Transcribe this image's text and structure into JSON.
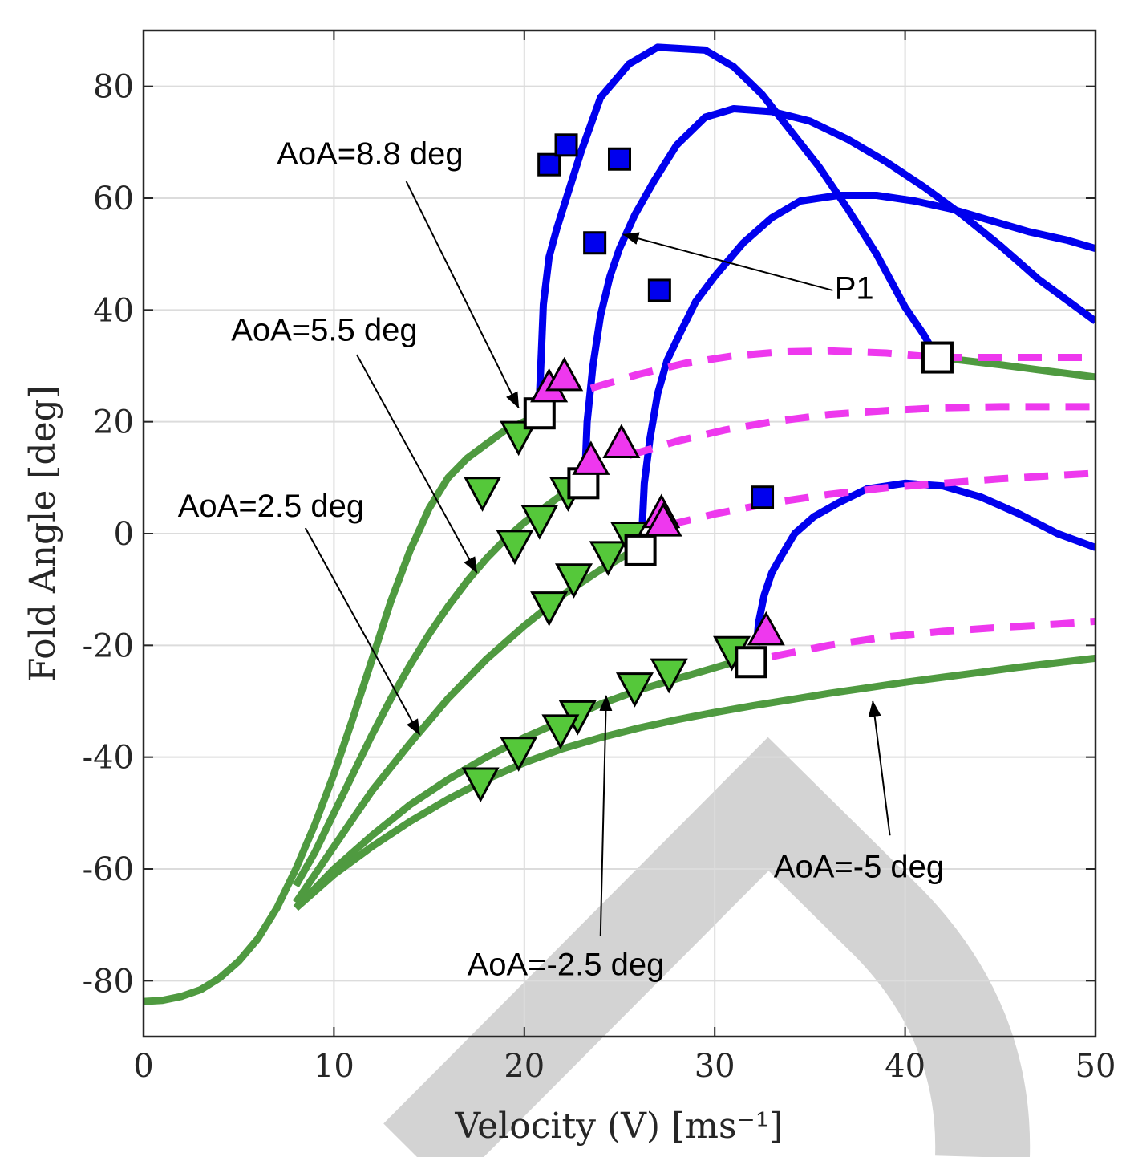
{
  "chart_data": {
    "type": "line",
    "xlabel": "Velocity (V) [ms⁻¹]",
    "ylabel": "Fold Angle [deg]",
    "xlim": [
      0,
      50
    ],
    "ylim": [
      -90,
      90
    ],
    "xticks": [
      0,
      10,
      20,
      30,
      40,
      50
    ],
    "yticks": [
      -80,
      -60,
      -40,
      -20,
      0,
      20,
      40,
      60,
      80
    ],
    "grid": true,
    "colors": {
      "stable": "#4f9a40",
      "flutter": "#0000ee",
      "unstable": "#ee38ee",
      "marker_green": "#55c83a",
      "watermark": "#d3d3d3"
    },
    "curves": [
      {
        "style": "stable",
        "x": [
          0,
          1,
          2,
          3,
          4,
          5,
          6,
          7,
          8,
          9,
          10,
          11,
          12,
          13,
          14,
          15,
          16,
          17,
          18,
          19,
          20.3
        ],
        "y": [
          -83.7,
          -83.5,
          -82.8,
          -81.6,
          -79.5,
          -76.5,
          -72.5,
          -67,
          -60,
          -52,
          -43,
          -33,
          -22.5,
          -12,
          -3,
          4.5,
          10,
          13.5,
          16,
          18.5,
          20.5
        ]
      },
      {
        "style": "stable",
        "x": [
          8,
          9,
          10,
          11,
          12,
          13,
          14,
          15,
          16,
          17,
          18,
          19,
          20,
          21,
          22,
          23
        ],
        "y": [
          -63,
          -57,
          -50,
          -43,
          -36,
          -29.5,
          -23.5,
          -18,
          -13,
          -8.5,
          -4.5,
          -1,
          2,
          4.5,
          7,
          9.5
        ]
      },
      {
        "style": "stable",
        "x": [
          8,
          10,
          12,
          14,
          16,
          18,
          20,
          22,
          24,
          26
        ],
        "y": [
          -66,
          -56,
          -46,
          -37.5,
          -29.5,
          -22.5,
          -16.5,
          -11,
          -6.5,
          -2.5
        ]
      },
      {
        "style": "stable",
        "x": [
          8,
          10,
          12,
          14,
          16,
          18,
          20,
          22,
          24,
          26,
          28,
          30,
          32
        ],
        "y": [
          -67,
          -60,
          -54,
          -48.5,
          -44,
          -40,
          -36.5,
          -33.5,
          -30.5,
          -28,
          -26,
          -24,
          -22
        ]
      },
      {
        "style": "stable",
        "x": [
          8,
          10,
          12,
          14,
          16,
          18,
          20,
          22,
          24,
          26,
          28,
          30,
          32,
          34,
          36,
          38,
          40,
          42,
          44,
          46,
          48,
          50
        ],
        "y": [
          -67,
          -61,
          -56,
          -51.5,
          -47.5,
          -44,
          -41,
          -38.5,
          -36.5,
          -34.8,
          -33.3,
          -32,
          -30.8,
          -29.7,
          -28.6,
          -27.6,
          -26.6,
          -25.7,
          -24.8,
          -23.9,
          -23.1,
          -22.3
        ]
      },
      {
        "style": "stable",
        "x": [
          41.7,
          43,
          45,
          47,
          50
        ],
        "y": [
          31.5,
          31,
          30.2,
          29.3,
          28
        ]
      },
      {
        "style": "flutter",
        "x": [
          20.8,
          20.9,
          21,
          21.3,
          21.7,
          22.3,
          23,
          24,
          25.5,
          27,
          28,
          29.5,
          31,
          32.5,
          34,
          35.5,
          37,
          38.5,
          40,
          41,
          41.5,
          41.7
        ],
        "y": [
          25,
          33,
          41,
          49.5,
          54.5,
          61,
          68.5,
          78,
          84,
          87,
          86.8,
          86.5,
          83.5,
          78.5,
          72,
          65.5,
          58,
          50,
          40.5,
          35.5,
          32.5,
          31.5
        ]
      },
      {
        "style": "flutter",
        "x": [
          23.2,
          23.3,
          23.6,
          24,
          24.5,
          25,
          25.8,
          26.8,
          28,
          29.5,
          31,
          33,
          35,
          37,
          39,
          41,
          43,
          45,
          47,
          50
        ],
        "y": [
          12,
          20,
          30,
          39,
          46,
          51,
          57,
          63,
          69.5,
          74.5,
          76,
          75.5,
          73.8,
          70.5,
          66.5,
          62,
          57,
          51.5,
          45.5,
          38
        ]
      },
      {
        "style": "flutter",
        "x": [
          26.2,
          26.3,
          26.6,
          27,
          27.5,
          28.2,
          29,
          30,
          31.5,
          33,
          34.5,
          36.5,
          38.5,
          40.5,
          42.5,
          44.5,
          46.5,
          48.5,
          50
        ],
        "y": [
          2,
          9,
          17,
          25,
          31,
          36,
          41.5,
          46,
          52,
          56.5,
          59.5,
          60.5,
          60.5,
          59.5,
          58,
          56,
          54,
          52.5,
          51
        ]
      },
      {
        "style": "flutter",
        "x": [
          32.2,
          32.3,
          32.6,
          33,
          33.5,
          34.2,
          35.2,
          36.5,
          38,
          40,
          42,
          44,
          46,
          48,
          50
        ],
        "y": [
          -20,
          -16,
          -11,
          -7,
          -4,
          0,
          3,
          5.5,
          8,
          9,
          8.5,
          6.5,
          3.5,
          0,
          -2.5
        ]
      },
      {
        "style": "unstable",
        "x": [
          23.5,
          26,
          28.5,
          31,
          33.5,
          36,
          39,
          41.7
        ],
        "y": [
          26,
          28.5,
          30.5,
          31.8,
          32.5,
          32.7,
          32.3,
          31.5
        ]
      },
      {
        "style": "unstable",
        "x": [
          41.7,
          44,
          47,
          50
        ],
        "y": [
          31.5,
          31.5,
          31.5,
          31.5
        ]
      },
      {
        "style": "unstable",
        "x": [
          25.5,
          28,
          30.5,
          33,
          36,
          39,
          42,
          45,
          48,
          50
        ],
        "y": [
          14,
          16.5,
          18.5,
          20,
          21.3,
          22,
          22.5,
          22.7,
          22.7,
          22.7
        ]
      },
      {
        "style": "unstable",
        "x": [
          27.5,
          30,
          33,
          36,
          39,
          42,
          45,
          48,
          50
        ],
        "y": [
          1.5,
          3.5,
          5.5,
          7,
          8.2,
          9,
          9.8,
          10.4,
          10.8
        ]
      },
      {
        "style": "unstable",
        "x": [
          33,
          36,
          39,
          42,
          45,
          48,
          50
        ],
        "y": [
          -22,
          -20,
          -18.5,
          -17.5,
          -16.8,
          -16.2,
          -15.7
        ]
      }
    ],
    "markers": {
      "blue_squares": {
        "x": [
          21.3,
          22.2,
          25,
          23.7,
          27.1,
          32.5
        ],
        "y": [
          66,
          69.5,
          67,
          52,
          43.5,
          6.5
        ]
      },
      "white_squares": {
        "x": [
          20.8,
          23.1,
          26.1,
          31.9,
          41.7
        ],
        "y": [
          21.5,
          9,
          -3,
          -23,
          31.5
        ]
      },
      "magenta_triangles": {
        "x": [
          21.3,
          22.1,
          23.5,
          25.1,
          27.2,
          27.3,
          32.7
        ],
        "y": [
          26,
          28,
          13,
          16,
          3.5,
          2,
          -17.5
        ]
      },
      "green_triangles": {
        "x": [
          17.8,
          19.7,
          19.5,
          20.8,
          22.3,
          24.4,
          25.5,
          22.6,
          21.3,
          30.9,
          27.6,
          25.8,
          22.8,
          21.9,
          19.7,
          17.7
        ],
        "y": [
          7.5,
          17.5,
          -2,
          2.5,
          7.5,
          -4,
          -0.5,
          -8,
          -13,
          -21,
          -25,
          -27.5,
          -32.5,
          -35,
          -39,
          -44.5
        ]
      }
    },
    "annotations": [
      {
        "label": "AoA=8.8 deg",
        "x": 7,
        "y": 66,
        "arrow_from": [
          13.8,
          63
        ],
        "arrow_to": [
          19.7,
          22.5
        ]
      },
      {
        "label": "AoA=5.5 deg",
        "x": 4.6,
        "y": 34.5,
        "arrow_from": [
          11.2,
          32
        ],
        "arrow_to": [
          17.5,
          -7
        ]
      },
      {
        "label": "AoA=2.5 deg",
        "x": 1.8,
        "y": 3,
        "arrow_from": [
          8.5,
          1
        ],
        "arrow_to": [
          14.5,
          -36
        ]
      },
      {
        "label": "P1",
        "x": 36.3,
        "y": 42,
        "arrow_from": [
          36.2,
          43.5
        ],
        "arrow_to": [
          25.2,
          53.5
        ]
      },
      {
        "label": "AoA=-5 deg",
        "x": 33.1,
        "y": -61.5,
        "arrow_from": [
          39.2,
          -54
        ],
        "arrow_to": [
          38.3,
          -30
        ]
      },
      {
        "label": "AoA=-2.5 deg",
        "x": 17,
        "y": -79,
        "arrow_from": [
          24,
          -72
        ],
        "arrow_to": [
          24.3,
          -29
        ]
      }
    ]
  }
}
